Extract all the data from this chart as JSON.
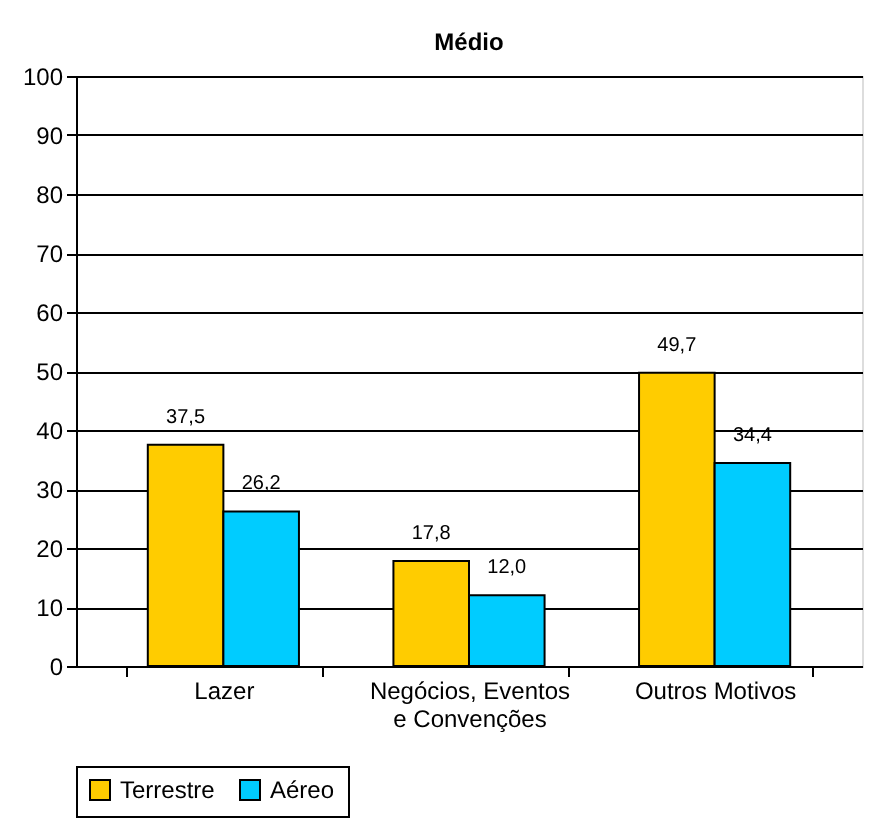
{
  "chart_data": {
    "type": "bar",
    "title": "Médio",
    "categories": [
      "Lazer",
      "Negócios, Eventos e Convenções",
      "Outros Motivos"
    ],
    "series": [
      {
        "name": "Terrestre",
        "color": "#ffcc00",
        "values": [
          37.5,
          17.8,
          49.7
        ],
        "value_labels": [
          "37,5",
          "17,8",
          "49,7"
        ]
      },
      {
        "name": "Aéreo",
        "color": "#00ccff",
        "values": [
          26.2,
          12.0,
          34.4
        ],
        "value_labels": [
          "26,2",
          "12,0",
          "34,4"
        ]
      }
    ],
    "ylim": [
      0,
      100
    ],
    "yticks": [
      0,
      10,
      20,
      30,
      40,
      50,
      60,
      70,
      80,
      90,
      100
    ],
    "grid": "y",
    "legend": "bottom"
  }
}
